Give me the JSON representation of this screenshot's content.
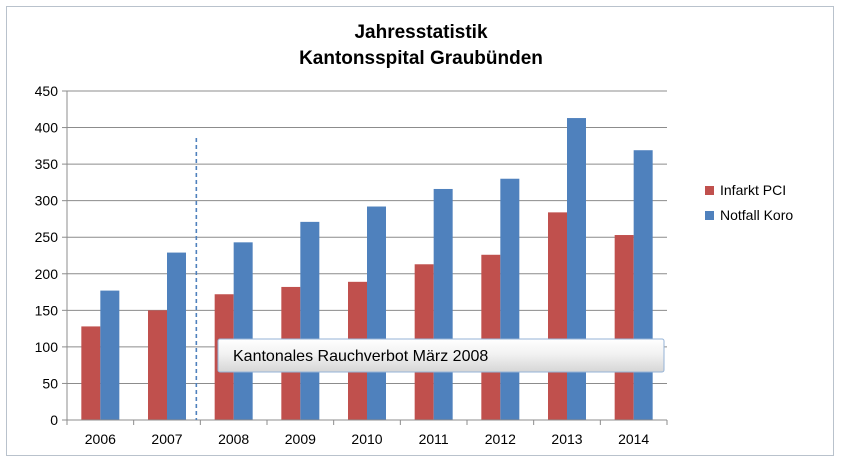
{
  "chart_data": {
    "type": "bar",
    "title": [
      "Jahresstatistik",
      "Kantonsspital Graubünden"
    ],
    "categories": [
      "2006",
      "2007",
      "2008",
      "2009",
      "2010",
      "2011",
      "2012",
      "2013",
      "2014"
    ],
    "series": [
      {
        "name": "Infarkt PCI",
        "color": "#c0504d",
        "values": [
          128,
          150,
          172,
          182,
          189,
          213,
          226,
          284,
          253
        ]
      },
      {
        "name": "Notfall Koro",
        "color": "#4f81bd",
        "values": [
          177,
          229,
          243,
          271,
          292,
          316,
          330,
          413,
          369
        ]
      }
    ],
    "ylim": [
      0,
      450
    ],
    "yticks": [
      0,
      50,
      100,
      150,
      200,
      250,
      300,
      350,
      400,
      450
    ],
    "grid": true,
    "legend": "right",
    "annotation": {
      "text": "Kantonales Rauchverbot März 2008",
      "marker": "dashed vertical line before 2008"
    }
  }
}
